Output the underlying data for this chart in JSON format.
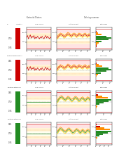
{
  "title_left": "Kartesisk Distans",
  "title_right": "Delning nummer",
  "header_col_labels": [
    "Char. value",
    "Lattice Chart",
    "Histogram / Kontrolldata"
  ],
  "rows": [
    {
      "label": "Kartesisk distans Taktil 1",
      "bar_color": "#cc0000",
      "upper_tol": 0.65,
      "lower_tol": 0.35,
      "nominal": 0.5,
      "ctrl_vals": [
        0.52,
        0.55,
        0.5,
        0.53,
        0.56,
        0.51,
        0.54,
        0.52,
        0.55,
        0.5,
        0.53,
        0.51,
        0.54,
        0.52,
        0.5,
        0.53,
        0.51,
        0.54,
        0.52,
        0.5,
        0.53,
        0.55,
        0.51,
        0.54,
        0.52,
        0.5,
        0.53,
        0.51
      ],
      "pattern_vals": [
        0.51,
        0.53,
        0.55,
        0.57,
        0.56,
        0.55,
        0.53,
        0.54,
        0.56,
        0.58,
        0.57,
        0.55,
        0.54,
        0.56,
        0.57,
        0.56,
        0.54,
        0.55,
        0.57,
        0.56,
        0.55,
        0.54,
        0.56,
        0.57,
        0.55,
        0.54,
        0.56,
        0.55
      ],
      "pattern_vals2": [
        0.53,
        0.55,
        0.57,
        0.59,
        0.58,
        0.57,
        0.55,
        0.56,
        0.58,
        0.6,
        0.59,
        0.57,
        0.56,
        0.58,
        0.59,
        0.58,
        0.56,
        0.57,
        0.59,
        0.58,
        0.57,
        0.56,
        0.58,
        0.59,
        0.57,
        0.56,
        0.58,
        0.57
      ],
      "pattern_vals3": [
        0.49,
        0.51,
        0.53,
        0.55,
        0.54,
        0.53,
        0.51,
        0.52,
        0.54,
        0.56,
        0.55,
        0.53,
        0.52,
        0.54,
        0.55,
        0.54,
        0.52,
        0.53,
        0.55,
        0.54,
        0.53,
        0.52,
        0.54,
        0.55,
        0.53,
        0.52,
        0.54,
        0.53
      ],
      "hist_vals": [
        0,
        1,
        2,
        4,
        8,
        18,
        22,
        15,
        8,
        3,
        1,
        0
      ],
      "hist_colors": [
        "#cc0000",
        "#cc0000",
        "#ff8c00",
        "#ff8c00",
        "#228b22",
        "#228b22",
        "#228b22",
        "#228b22",
        "#ff8c00",
        "#ff8c00",
        "#cc0000",
        "#cc0000"
      ],
      "line_color": "#cc0000"
    },
    {
      "label": "Kartesisk distans Taktil 2",
      "bar_color": "#cc0000",
      "upper_tol": 0.65,
      "lower_tol": 0.35,
      "nominal": 0.5,
      "ctrl_vals": [
        0.52,
        0.55,
        0.5,
        0.53,
        0.56,
        0.51,
        0.54,
        0.52,
        0.55,
        0.5,
        0.53,
        0.51,
        0.54,
        0.52,
        0.5,
        0.53,
        0.51,
        0.54,
        0.52,
        0.5,
        0.53,
        0.55,
        0.51,
        0.54,
        0.52,
        0.5,
        0.53,
        0.51
      ],
      "pattern_vals": [
        0.51,
        0.53,
        0.55,
        0.57,
        0.56,
        0.55,
        0.53,
        0.54,
        0.56,
        0.58,
        0.57,
        0.55,
        0.54,
        0.56,
        0.57,
        0.56,
        0.54,
        0.55,
        0.57,
        0.56,
        0.55,
        0.54,
        0.56,
        0.57,
        0.55,
        0.54,
        0.56,
        0.55
      ],
      "pattern_vals2": [
        0.53,
        0.55,
        0.57,
        0.59,
        0.58,
        0.57,
        0.55,
        0.56,
        0.58,
        0.6,
        0.59,
        0.57,
        0.56,
        0.58,
        0.59,
        0.58,
        0.56,
        0.57,
        0.59,
        0.58,
        0.57,
        0.56,
        0.58,
        0.59,
        0.57,
        0.56,
        0.58,
        0.57
      ],
      "pattern_vals3": [
        0.49,
        0.51,
        0.53,
        0.55,
        0.54,
        0.53,
        0.51,
        0.52,
        0.54,
        0.56,
        0.55,
        0.53,
        0.52,
        0.54,
        0.55,
        0.54,
        0.52,
        0.53,
        0.55,
        0.54,
        0.53,
        0.52,
        0.54,
        0.55,
        0.53,
        0.52,
        0.54,
        0.53
      ],
      "hist_vals": [
        0,
        0,
        1,
        3,
        7,
        15,
        22,
        18,
        9,
        4,
        1,
        0
      ],
      "hist_colors": [
        "#cc0000",
        "#cc0000",
        "#ff8c00",
        "#ff8c00",
        "#228b22",
        "#228b22",
        "#228b22",
        "#228b22",
        "#ff8c00",
        "#ff8c00",
        "#cc0000",
        "#cc0000"
      ],
      "line_color": "#cc0000"
    },
    {
      "label": "Kartesisk distans Lp 1",
      "bar_color": "#228b22",
      "upper_tol": 0.65,
      "lower_tol": 0.35,
      "nominal": 0.5,
      "ctrl_vals": [
        0.5,
        0.5,
        0.5,
        0.5,
        0.5,
        0.5,
        0.5,
        0.5,
        0.5,
        0.5,
        0.5,
        0.5,
        0.5,
        0.5,
        0.5,
        0.5,
        0.5,
        0.5,
        0.5,
        0.5,
        0.5,
        0.5,
        0.5,
        0.5,
        0.5,
        0.5,
        0.5,
        0.5
      ],
      "pattern_vals": [
        0.5,
        0.52,
        0.55,
        0.57,
        0.58,
        0.56,
        0.54,
        0.53,
        0.55,
        0.57,
        0.56,
        0.54,
        0.52,
        0.53,
        0.55,
        0.57,
        0.56,
        0.54,
        0.52,
        0.53,
        0.55,
        0.56,
        0.54,
        0.52,
        0.54,
        0.56,
        0.55,
        0.53
      ],
      "pattern_vals2": [
        0.52,
        0.54,
        0.57,
        0.59,
        0.6,
        0.58,
        0.56,
        0.55,
        0.57,
        0.59,
        0.58,
        0.56,
        0.54,
        0.55,
        0.57,
        0.59,
        0.58,
        0.56,
        0.54,
        0.55,
        0.57,
        0.58,
        0.56,
        0.54,
        0.56,
        0.58,
        0.57,
        0.55
      ],
      "pattern_vals3": [
        0.48,
        0.5,
        0.53,
        0.55,
        0.56,
        0.54,
        0.52,
        0.51,
        0.53,
        0.55,
        0.54,
        0.52,
        0.5,
        0.51,
        0.53,
        0.55,
        0.54,
        0.52,
        0.5,
        0.51,
        0.53,
        0.54,
        0.52,
        0.5,
        0.52,
        0.54,
        0.53,
        0.51
      ],
      "hist_vals": [
        0,
        0,
        1,
        2,
        5,
        10,
        16,
        20,
        15,
        8,
        3,
        0
      ],
      "hist_colors": [
        "#cc0000",
        "#cc0000",
        "#ff8c00",
        "#ff8c00",
        "#228b22",
        "#228b22",
        "#228b22",
        "#228b22",
        "#ff8c00",
        "#ff8c00",
        "#cc0000",
        "#cc0000"
      ],
      "line_color": "#228b22"
    },
    {
      "label": "Kartesisk distans Lp 2",
      "bar_color": "#228b22",
      "upper_tol": 0.65,
      "lower_tol": 0.35,
      "nominal": 0.5,
      "ctrl_vals": [
        0.5,
        0.5,
        0.5,
        0.5,
        0.5,
        0.5,
        0.5,
        0.5,
        0.5,
        0.5,
        0.5,
        0.5,
        0.5,
        0.5,
        0.5,
        0.5,
        0.5,
        0.5,
        0.5,
        0.5,
        0.5,
        0.5,
        0.5,
        0.5,
        0.5,
        0.5,
        0.5,
        0.5
      ],
      "pattern_vals": [
        0.51,
        0.53,
        0.56,
        0.58,
        0.57,
        0.55,
        0.53,
        0.52,
        0.54,
        0.56,
        0.57,
        0.55,
        0.53,
        0.51,
        0.52,
        0.54,
        0.56,
        0.55,
        0.53,
        0.51,
        0.53,
        0.55,
        0.53,
        0.51,
        0.53,
        0.55,
        0.54,
        0.52
      ],
      "pattern_vals2": [
        0.53,
        0.55,
        0.58,
        0.6,
        0.59,
        0.57,
        0.55,
        0.54,
        0.56,
        0.58,
        0.59,
        0.57,
        0.55,
        0.53,
        0.54,
        0.56,
        0.58,
        0.57,
        0.55,
        0.53,
        0.55,
        0.57,
        0.55,
        0.53,
        0.55,
        0.57,
        0.56,
        0.54
      ],
      "pattern_vals3": [
        0.49,
        0.51,
        0.54,
        0.56,
        0.55,
        0.53,
        0.51,
        0.5,
        0.52,
        0.54,
        0.55,
        0.53,
        0.51,
        0.49,
        0.5,
        0.52,
        0.54,
        0.53,
        0.51,
        0.49,
        0.51,
        0.53,
        0.51,
        0.49,
        0.51,
        0.53,
        0.52,
        0.5
      ],
      "hist_vals": [
        0,
        0,
        0,
        2,
        4,
        8,
        14,
        18,
        16,
        10,
        5,
        1
      ],
      "hist_colors": [
        "#cc0000",
        "#cc0000",
        "#ff8c00",
        "#ff8c00",
        "#228b22",
        "#228b22",
        "#228b22",
        "#228b22",
        "#ff8c00",
        "#ff8c00",
        "#cc0000",
        "#cc0000"
      ],
      "line_color": "#228b22"
    }
  ],
  "bg_color": "#ffffff",
  "band_colors": [
    "#ffdddd",
    "#fff0cc",
    "#ffffee",
    "#fff0cc",
    "#ffdddd"
  ],
  "line_upper": "#cc0000",
  "line_lower": "#cc0000",
  "line_nominal": "#888888",
  "line_warn1": "#ff8c00",
  "line_warn2": "#ffcc00"
}
